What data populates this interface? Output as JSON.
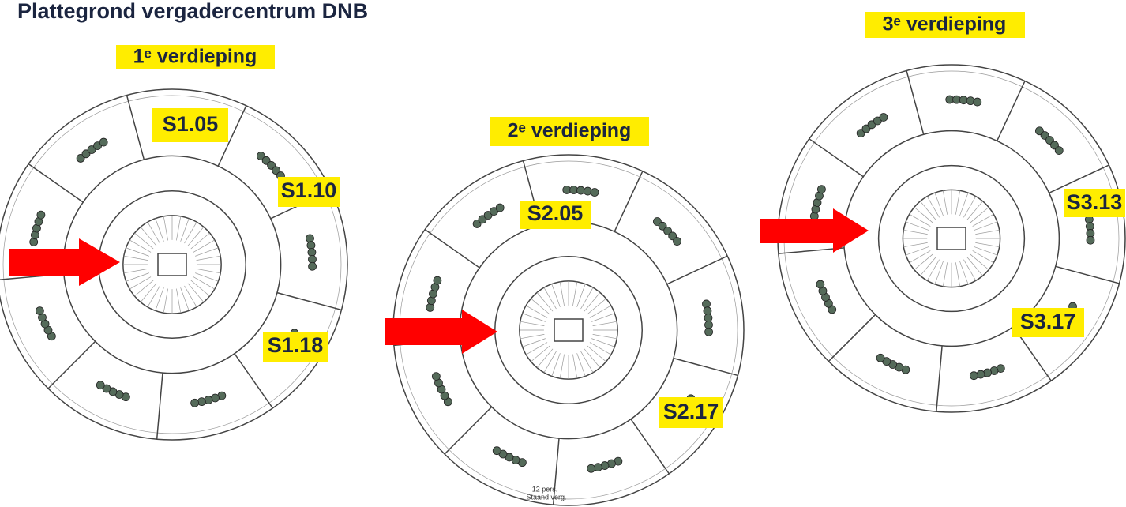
{
  "header": {
    "title": "Plattegrond vergadercentrum DNB"
  },
  "floors": [
    {
      "label": "1ᵉ verdieping",
      "rooms": [
        "S1.05",
        "S1.10",
        "S1.18"
      ]
    },
    {
      "label": "2ᵉ verdieping",
      "rooms": [
        "S2.05",
        "S2.17"
      ],
      "notes": [
        "12 pers.",
        "Staand verg."
      ]
    },
    {
      "label": "3ᵉ verdieping",
      "rooms": [
        "S3.13",
        "S3.17"
      ]
    }
  ]
}
